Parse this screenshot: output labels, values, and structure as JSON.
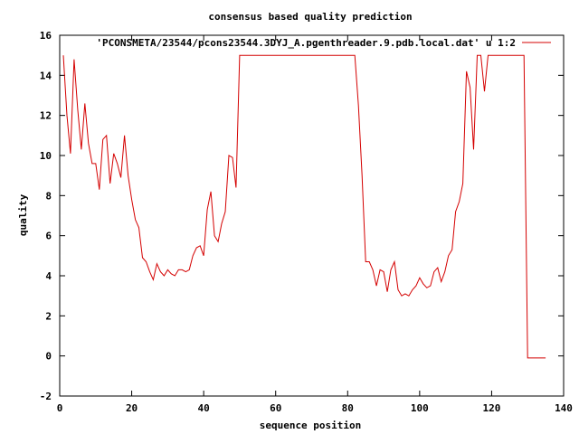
{
  "chart_data": {
    "type": "line",
    "title": "consensus based quality prediction",
    "xlabel": "sequence position",
    "ylabel": "quality",
    "xlim": [
      0,
      140
    ],
    "ylim": [
      -2,
      16
    ],
    "xticks": [
      0,
      20,
      40,
      60,
      80,
      100,
      120,
      140
    ],
    "yticks": [
      -2,
      0,
      2,
      4,
      6,
      8,
      10,
      12,
      14,
      16
    ],
    "grid": false,
    "legend_position": "top-right",
    "series": [
      {
        "name": "'PCONSMETA/23544/pcons23544.3DYJ_A.pgenthreader.9.pdb.local.dat' u 1:2",
        "color": "#d40000",
        "x": [
          1,
          2,
          3,
          4,
          5,
          6,
          7,
          8,
          9,
          10,
          11,
          12,
          13,
          14,
          15,
          16,
          17,
          18,
          19,
          20,
          21,
          22,
          23,
          24,
          25,
          26,
          27,
          28,
          29,
          30,
          31,
          32,
          33,
          34,
          35,
          36,
          37,
          38,
          39,
          40,
          41,
          42,
          43,
          44,
          45,
          46,
          47,
          48,
          49,
          50,
          82,
          83,
          84,
          85,
          86,
          87,
          88,
          89,
          90,
          91,
          92,
          93,
          94,
          95,
          96,
          97,
          98,
          99,
          100,
          101,
          102,
          103,
          104,
          105,
          106,
          107,
          108,
          109,
          110,
          111,
          112,
          113,
          114,
          115,
          116,
          117,
          118,
          119,
          120,
          121,
          129,
          130,
          131,
          132,
          133,
          134,
          135
        ],
        "y": [
          15.0,
          12.0,
          10.1,
          14.8,
          12.3,
          10.3,
          12.6,
          10.6,
          9.6,
          9.6,
          8.3,
          10.8,
          11.0,
          8.6,
          10.1,
          9.6,
          8.9,
          11.0,
          9.0,
          7.8,
          6.8,
          6.4,
          4.9,
          4.7,
          4.2,
          3.8,
          4.6,
          4.2,
          4.0,
          4.3,
          4.1,
          4.0,
          4.3,
          4.3,
          4.2,
          4.3,
          5.0,
          5.4,
          5.5,
          5.0,
          7.3,
          8.2,
          6.0,
          5.7,
          6.6,
          7.2,
          10.0,
          9.9,
          8.4,
          15.0,
          15.0,
          12.5,
          9.0,
          4.7,
          4.7,
          4.3,
          3.5,
          4.3,
          4.2,
          3.2,
          4.3,
          4.7,
          3.3,
          3.0,
          3.1,
          3.0,
          3.3,
          3.5,
          3.9,
          3.6,
          3.4,
          3.5,
          4.2,
          4.4,
          3.7,
          4.2,
          5.0,
          5.3,
          7.2,
          7.7,
          8.6,
          14.2,
          13.4,
          10.3,
          15.0,
          15.0,
          13.2,
          15.0,
          15.0,
          15.0,
          15.0,
          -0.1,
          -0.1,
          -0.1,
          -0.1,
          -0.1,
          -0.1
        ]
      }
    ]
  }
}
